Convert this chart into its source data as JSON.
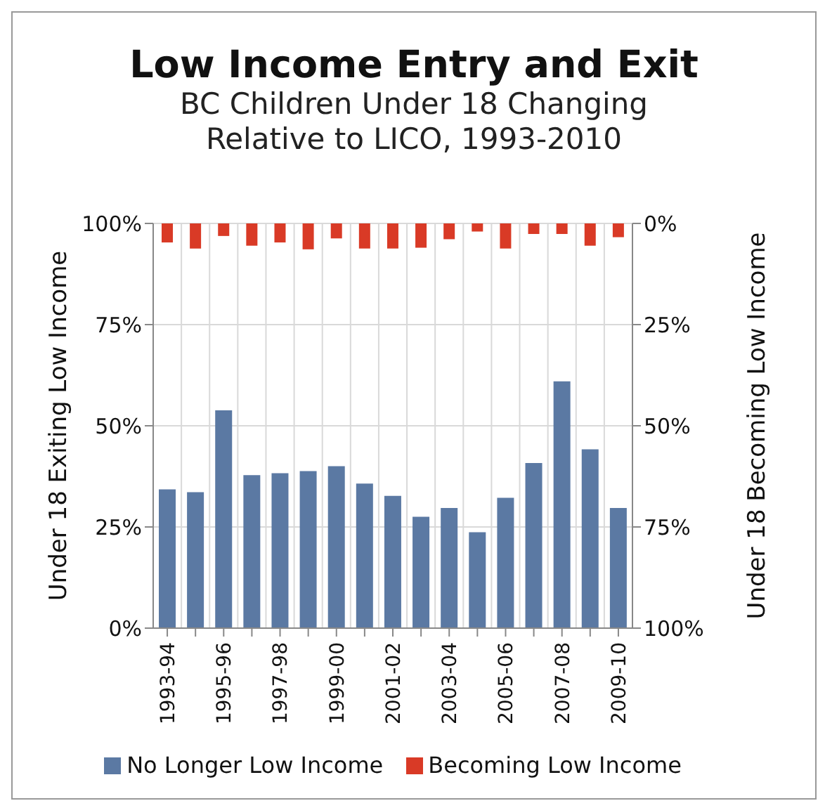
{
  "chart_data": {
    "type": "bar",
    "title": "Low Income Entry and Exit",
    "subtitle": "BC Children Under 18 Changing Relative to LICO, 1993-2010",
    "ylabel": "Under 18 Exiting Low Income",
    "y2label": "Under 18 Becoming Low Income",
    "categories": [
      "1993-94",
      null,
      "1995-96",
      null,
      "1997-98",
      null,
      "1999-00",
      null,
      "2001-02",
      null,
      "2003-04",
      null,
      "2005-06",
      null,
      "2007-08",
      null,
      "2009-10"
    ],
    "series": [
      {
        "name": "No Longer Low Income",
        "color": "#5b79a3",
        "values": [
          34.3,
          33.6,
          53.8,
          37.8,
          38.3,
          38.8,
          40.0,
          35.7,
          32.7,
          27.5,
          29.7,
          23.7,
          32.2,
          40.8,
          61.0,
          44.2,
          29.7
        ]
      },
      {
        "name": "Becoming Low Income",
        "color": "#d93a26",
        "axis": "y2",
        "values": [
          4.7,
          6.2,
          3.1,
          5.5,
          4.7,
          6.4,
          3.7,
          6.2,
          6.2,
          6.0,
          3.9,
          2.0,
          6.2,
          2.6,
          2.6,
          5.5,
          3.4
        ]
      }
    ],
    "ylim": [
      0,
      100
    ],
    "yticks": [
      {
        "value": 0,
        "label": "0%"
      },
      {
        "value": 25,
        "label": "25%"
      },
      {
        "value": 50,
        "label": "50%"
      },
      {
        "value": 75,
        "label": "75%"
      },
      {
        "value": 100,
        "label": "100%"
      }
    ],
    "y2lim": [
      100,
      0
    ],
    "y2ticks": [
      {
        "value": 0,
        "label": "0%"
      },
      {
        "value": 25,
        "label": "25%"
      },
      {
        "value": 50,
        "label": "50%"
      },
      {
        "value": 75,
        "label": "75%"
      },
      {
        "value": 100,
        "label": "100%"
      }
    ],
    "grid": true,
    "legend": "bottom"
  }
}
